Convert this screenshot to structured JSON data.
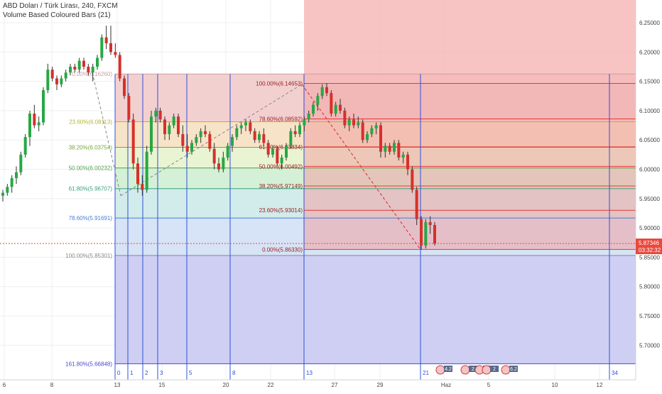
{
  "header": {
    "title": "ABD Doları / Türk Lirası, 240, FXCM",
    "indicator": "Volume Based Coloured Bars (21)"
  },
  "colors": {
    "up": "#26a844",
    "down": "#d6302a",
    "wick": "#333333",
    "price_tag": "#e8493c",
    "fib_red": "#e53935",
    "timezone_line": "#2f50d8"
  },
  "chart_data": {
    "type": "candlestick",
    "title": "ABD Doları / Türk Lirası, 240, FXCM",
    "ylim": [
      5.65,
      6.28
    ],
    "price_axis_ticks": [
      "6.25000",
      "6.20000",
      "6.15000",
      "6.10000",
      "6.05000",
      "6.00000",
      "5.95000",
      "5.90000",
      "5.85000",
      "5.80000",
      "5.75000",
      "5.70000"
    ],
    "time_axis_labels": [
      "6",
      "8",
      "13",
      "15",
      "20",
      "22",
      "27",
      "29",
      "Haz",
      "5",
      "10",
      "12"
    ],
    "last_price": "5.87346",
    "countdown": "03:32:32",
    "candles": [
      {
        "o": 5.955,
        "h": 5.965,
        "l": 5.945,
        "c": 5.96
      },
      {
        "o": 5.96,
        "h": 5.975,
        "l": 5.955,
        "c": 5.97
      },
      {
        "o": 5.97,
        "h": 5.99,
        "l": 5.96,
        "c": 5.985
      },
      {
        "o": 5.985,
        "h": 6.005,
        "l": 5.975,
        "c": 5.995
      },
      {
        "o": 5.995,
        "h": 6.03,
        "l": 5.99,
        "c": 6.025
      },
      {
        "o": 6.025,
        "h": 6.06,
        "l": 6.02,
        "c": 6.055
      },
      {
        "o": 6.055,
        "h": 6.1,
        "l": 6.04,
        "c": 6.095
      },
      {
        "o": 6.095,
        "h": 6.11,
        "l": 6.07,
        "c": 6.075
      },
      {
        "o": 6.075,
        "h": 6.09,
        "l": 6.065,
        "c": 6.08
      },
      {
        "o": 6.08,
        "h": 6.14,
        "l": 6.075,
        "c": 6.135
      },
      {
        "o": 6.135,
        "h": 6.18,
        "l": 6.13,
        "c": 6.17
      },
      {
        "o": 6.17,
        "h": 6.175,
        "l": 6.15,
        "c": 6.155
      },
      {
        "o": 6.155,
        "h": 6.16,
        "l": 6.135,
        "c": 6.145
      },
      {
        "o": 6.145,
        "h": 6.16,
        "l": 6.14,
        "c": 6.155
      },
      {
        "o": 6.155,
        "h": 6.17,
        "l": 6.15,
        "c": 6.165
      },
      {
        "o": 6.165,
        "h": 6.18,
        "l": 6.16,
        "c": 6.175
      },
      {
        "o": 6.175,
        "h": 6.18,
        "l": 6.165,
        "c": 6.17
      },
      {
        "o": 6.17,
        "h": 6.19,
        "l": 6.165,
        "c": 6.185
      },
      {
        "o": 6.185,
        "h": 6.19,
        "l": 6.17,
        "c": 6.175
      },
      {
        "o": 6.175,
        "h": 6.18,
        "l": 6.16,
        "c": 6.165
      },
      {
        "o": 6.165,
        "h": 6.18,
        "l": 6.15,
        "c": 6.175
      },
      {
        "o": 6.175,
        "h": 6.195,
        "l": 6.17,
        "c": 6.19
      },
      {
        "o": 6.19,
        "h": 6.23,
        "l": 6.185,
        "c": 6.225
      },
      {
        "o": 6.225,
        "h": 6.245,
        "l": 6.205,
        "c": 6.215
      },
      {
        "o": 6.215,
        "h": 6.245,
        "l": 6.195,
        "c": 6.2
      },
      {
        "o": 6.2,
        "h": 6.215,
        "l": 6.19,
        "c": 6.195
      },
      {
        "o": 6.195,
        "h": 6.2,
        "l": 6.15,
        "c": 6.155
      },
      {
        "o": 6.155,
        "h": 6.16,
        "l": 6.12,
        "c": 6.125
      },
      {
        "o": 6.125,
        "h": 6.13,
        "l": 6.08,
        "c": 6.085
      },
      {
        "o": 6.085,
        "h": 6.095,
        "l": 6.0,
        "c": 6.01
      },
      {
        "o": 6.01,
        "h": 6.02,
        "l": 5.96,
        "c": 5.975
      },
      {
        "o": 5.975,
        "h": 5.99,
        "l": 5.955,
        "c": 5.965
      },
      {
        "o": 5.965,
        "h": 6.04,
        "l": 5.96,
        "c": 6.03
      },
      {
        "o": 6.03,
        "h": 6.1,
        "l": 6.025,
        "c": 6.09
      },
      {
        "o": 6.09,
        "h": 6.105,
        "l": 6.08,
        "c": 6.1
      },
      {
        "o": 6.1,
        "h": 6.105,
        "l": 6.08,
        "c": 6.085
      },
      {
        "o": 6.085,
        "h": 6.09,
        "l": 6.05,
        "c": 6.06
      },
      {
        "o": 6.06,
        "h": 6.08,
        "l": 6.05,
        "c": 6.075
      },
      {
        "o": 6.075,
        "h": 6.095,
        "l": 6.07,
        "c": 6.09
      },
      {
        "o": 6.09,
        "h": 6.095,
        "l": 6.055,
        "c": 6.06
      },
      {
        "o": 6.06,
        "h": 6.075,
        "l": 6.03,
        "c": 6.04
      },
      {
        "o": 6.04,
        "h": 6.06,
        "l": 6.02,
        "c": 6.03
      },
      {
        "o": 6.03,
        "h": 6.05,
        "l": 6.025,
        "c": 6.045
      },
      {
        "o": 6.045,
        "h": 6.06,
        "l": 6.04,
        "c": 6.055
      },
      {
        "o": 6.055,
        "h": 6.07,
        "l": 6.045,
        "c": 6.065
      },
      {
        "o": 6.065,
        "h": 6.075,
        "l": 6.055,
        "c": 6.06
      },
      {
        "o": 6.06,
        "h": 6.065,
        "l": 6.03,
        "c": 6.035
      },
      {
        "o": 6.035,
        "h": 6.045,
        "l": 6.0,
        "c": 6.01
      },
      {
        "o": 6.01,
        "h": 6.02,
        "l": 5.995,
        "c": 6.0
      },
      {
        "o": 6.0,
        "h": 6.03,
        "l": 5.995,
        "c": 6.02
      },
      {
        "o": 6.02,
        "h": 6.045,
        "l": 6.015,
        "c": 6.04
      },
      {
        "o": 6.04,
        "h": 6.06,
        "l": 6.03,
        "c": 6.055
      },
      {
        "o": 6.055,
        "h": 6.075,
        "l": 6.05,
        "c": 6.07
      },
      {
        "o": 6.07,
        "h": 6.08,
        "l": 6.06,
        "c": 6.075
      },
      {
        "o": 6.075,
        "h": 6.085,
        "l": 6.065,
        "c": 6.08
      },
      {
        "o": 6.08,
        "h": 6.085,
        "l": 6.06,
        "c": 6.065
      },
      {
        "o": 6.065,
        "h": 6.07,
        "l": 6.045,
        "c": 6.05
      },
      {
        "o": 6.05,
        "h": 6.065,
        "l": 6.045,
        "c": 6.06
      },
      {
        "o": 6.06,
        "h": 6.07,
        "l": 6.04,
        "c": 6.045
      },
      {
        "o": 6.045,
        "h": 6.05,
        "l": 6.02,
        "c": 6.025
      },
      {
        "o": 6.025,
        "h": 6.04,
        "l": 6.02,
        "c": 6.035
      },
      {
        "o": 6.035,
        "h": 6.04,
        "l": 6.005,
        "c": 6.01
      },
      {
        "o": 6.01,
        "h": 6.025,
        "l": 6.0,
        "c": 6.02
      },
      {
        "o": 6.02,
        "h": 6.045,
        "l": 6.015,
        "c": 6.04
      },
      {
        "o": 6.04,
        "h": 6.07,
        "l": 6.035,
        "c": 6.065
      },
      {
        "o": 6.065,
        "h": 6.075,
        "l": 6.055,
        "c": 6.06
      },
      {
        "o": 6.06,
        "h": 6.08,
        "l": 6.055,
        "c": 6.075
      },
      {
        "o": 6.075,
        "h": 6.09,
        "l": 6.065,
        "c": 6.085
      },
      {
        "o": 6.085,
        "h": 6.1,
        "l": 6.08,
        "c": 6.095
      },
      {
        "o": 6.095,
        "h": 6.115,
        "l": 6.09,
        "c": 6.11
      },
      {
        "o": 6.11,
        "h": 6.13,
        "l": 6.1,
        "c": 6.125
      },
      {
        "o": 6.125,
        "h": 6.145,
        "l": 6.12,
        "c": 6.14
      },
      {
        "o": 6.14,
        "h": 6.147,
        "l": 6.125,
        "c": 6.13
      },
      {
        "o": 6.13,
        "h": 6.135,
        "l": 6.09,
        "c": 6.095
      },
      {
        "o": 6.095,
        "h": 6.115,
        "l": 6.09,
        "c": 6.11
      },
      {
        "o": 6.11,
        "h": 6.12,
        "l": 6.095,
        "c": 6.1
      },
      {
        "o": 6.1,
        "h": 6.105,
        "l": 6.07,
        "c": 6.075
      },
      {
        "o": 6.075,
        "h": 6.09,
        "l": 6.065,
        "c": 6.085
      },
      {
        "o": 6.085,
        "h": 6.095,
        "l": 6.07,
        "c": 6.075
      },
      {
        "o": 6.075,
        "h": 6.09,
        "l": 6.07,
        "c": 6.08
      },
      {
        "o": 6.08,
        "h": 6.085,
        "l": 6.045,
        "c": 6.05
      },
      {
        "o": 6.05,
        "h": 6.065,
        "l": 6.045,
        "c": 6.06
      },
      {
        "o": 6.06,
        "h": 6.075,
        "l": 6.055,
        "c": 6.07
      },
      {
        "o": 6.07,
        "h": 6.08,
        "l": 6.06,
        "c": 6.075
      },
      {
        "o": 6.075,
        "h": 6.08,
        "l": 6.02,
        "c": 6.03
      },
      {
        "o": 6.03,
        "h": 6.045,
        "l": 6.02,
        "c": 6.04
      },
      {
        "o": 6.04,
        "h": 6.045,
        "l": 6.025,
        "c": 6.03
      },
      {
        "o": 6.03,
        "h": 6.05,
        "l": 6.025,
        "c": 6.045
      },
      {
        "o": 6.045,
        "h": 6.05,
        "l": 6.015,
        "c": 6.02
      },
      {
        "o": 6.02,
        "h": 6.03,
        "l": 6.01,
        "c": 6.025
      },
      {
        "o": 6.025,
        "h": 6.03,
        "l": 5.99,
        "c": 6.0
      },
      {
        "o": 6.0,
        "h": 6.005,
        "l": 5.96,
        "c": 5.965
      },
      {
        "o": 5.965,
        "h": 5.97,
        "l": 5.905,
        "c": 5.915
      },
      {
        "o": 5.915,
        "h": 5.92,
        "l": 5.863,
        "c": 5.87
      },
      {
        "o": 5.87,
        "h": 5.915,
        "l": 5.865,
        "c": 5.91
      },
      {
        "o": 5.91,
        "h": 5.92,
        "l": 5.89,
        "c": 5.905
      },
      {
        "o": 5.905,
        "h": 5.91,
        "l": 5.87,
        "c": 5.8735
      }
    ],
    "fib_left": {
      "levels": [
        {
          "label": "0.00%(6.16260)",
          "price": 6.1626
        },
        {
          "label": "23.60%(6.08113)",
          "price": 6.08113
        },
        {
          "label": "38.20%(6.03754)",
          "price": 6.03754
        },
        {
          "label": "50.00%(6.00232)",
          "price": 6.00232
        },
        {
          "label": "61.80%(5.96707)",
          "price": 5.96707
        },
        {
          "label": "78.60%(5.91691)",
          "price": 5.91691
        },
        {
          "label": "100.00%(5.85301)",
          "price": 5.85301
        },
        {
          "label": "161.80%(5.66848)",
          "price": 5.66848
        }
      ]
    },
    "fib_right": {
      "levels": [
        {
          "label": "100.00%(6.14653)",
          "price": 6.14653
        },
        {
          "label": "78.60%(6.08592)",
          "price": 6.08592
        },
        {
          "label": "61.80%(6.03834)",
          "price": 6.03834
        },
        {
          "label": "50.00%(6.00492)",
          "price": 6.00492
        },
        {
          "label": "38.20%(5.97149)",
          "price": 5.97149
        },
        {
          "label": "23.60%(5.93014)",
          "price": 5.93014
        },
        {
          "label": "0.00%(5.86330)",
          "price": 5.8633
        }
      ]
    },
    "timezone_labels": [
      "0",
      "1",
      "2",
      "3",
      "5",
      "8",
      "13",
      "21",
      "34"
    ],
    "event_badges": [
      "4.2",
      "2",
      "2",
      "2",
      "6.2"
    ]
  }
}
